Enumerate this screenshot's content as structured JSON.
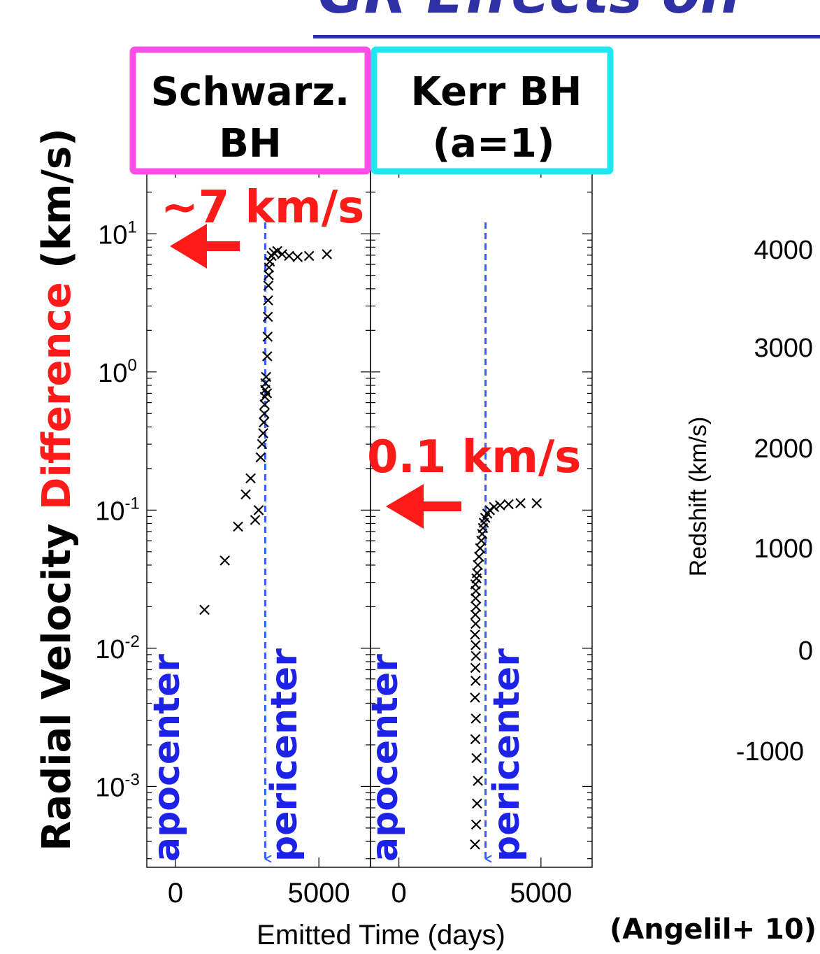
{
  "slide": {
    "title_fragment": "GR Effects on",
    "citation": "(Angelil+ 10)"
  },
  "colors": {
    "title": "#2e31a4",
    "difference": "#ff1a1a",
    "annotation_red": "#ff1a1a",
    "apsis_blue": "#1e22e6",
    "schwarzschild_box": "#ff4de8",
    "kerr_box": "#22e6ee",
    "markers": "#000000",
    "dashed_line": "#2f5fff"
  },
  "chart_data": [
    {
      "type": "scatter",
      "panel": "left",
      "label_box": [
        "Schwarz.",
        "BH"
      ],
      "annotation": "~7 km/s",
      "annotation_arrow_value": 7,
      "marker": "×",
      "ylabel_parts": [
        "Radial Velocity ",
        "Difference",
        " (km/s)"
      ],
      "xlabel": "Emitted Time (days)",
      "y_scale": "log",
      "ylim": [
        0.00026,
        30
      ],
      "xlim": [
        -1000,
        6800
      ],
      "yticks": [
        0.001,
        0.01,
        0.1,
        1,
        10
      ],
      "ytick_labels": [
        {
          "base": "10",
          "exp": "-3"
        },
        {
          "base": "10",
          "exp": "-2"
        },
        {
          "base": "10",
          "exp": "-1"
        },
        {
          "base": "10",
          "exp": "0"
        },
        {
          "base": "10",
          "exp": "1"
        }
      ],
      "xticks": [
        0,
        5000
      ],
      "xtick_labels": [
        "0",
        "5000"
      ],
      "apsis_labels": [
        "apocenter",
        "pericenter"
      ],
      "pericenter_x": 3130,
      "points": [
        {
          "x": 1010,
          "y": 0.019
        },
        {
          "x": 1720,
          "y": 0.043
        },
        {
          "x": 2180,
          "y": 0.076
        },
        {
          "x": 2450,
          "y": 0.13
        },
        {
          "x": 2620,
          "y": 0.17
        },
        {
          "x": 2780,
          "y": 0.085
        },
        {
          "x": 2900,
          "y": 0.1
        },
        {
          "x": 2970,
          "y": 0.24
        },
        {
          "x": 3020,
          "y": 0.3
        },
        {
          "x": 3060,
          "y": 0.36
        },
        {
          "x": 3080,
          "y": 0.43
        },
        {
          "x": 3100,
          "y": 0.5
        },
        {
          "x": 3110,
          "y": 0.58
        },
        {
          "x": 3120,
          "y": 0.66
        },
        {
          "x": 3130,
          "y": 0.74
        },
        {
          "x": 3140,
          "y": 0.83
        },
        {
          "x": 3160,
          "y": 0.92
        },
        {
          "x": 3190,
          "y": 0.7
        },
        {
          "x": 3200,
          "y": 1.3
        },
        {
          "x": 3210,
          "y": 1.8
        },
        {
          "x": 3220,
          "y": 2.5
        },
        {
          "x": 3230,
          "y": 3.3
        },
        {
          "x": 3240,
          "y": 4.2
        },
        {
          "x": 3250,
          "y": 5.0
        },
        {
          "x": 3260,
          "y": 5.7
        },
        {
          "x": 3290,
          "y": 6.3
        },
        {
          "x": 3350,
          "y": 6.9
        },
        {
          "x": 3430,
          "y": 7.3
        },
        {
          "x": 3550,
          "y": 7.5
        },
        {
          "x": 3720,
          "y": 7.1
        },
        {
          "x": 3960,
          "y": 6.9
        },
        {
          "x": 4260,
          "y": 6.8
        },
        {
          "x": 4660,
          "y": 6.9
        },
        {
          "x": 5280,
          "y": 7.1
        }
      ]
    },
    {
      "type": "scatter",
      "panel": "right",
      "label_box": [
        "Kerr BH",
        "(a=1)"
      ],
      "annotation": "0.1 km/s",
      "annotation_arrow_value": 0.1,
      "marker": "×",
      "y_scale": "log",
      "ylim": [
        0.00026,
        30
      ],
      "xlim": [
        -1000,
        6800
      ],
      "yticks": [
        0.001,
        0.01,
        0.1,
        1,
        10
      ],
      "xticks": [
        0,
        5000
      ],
      "xtick_labels": [
        "0",
        "5000"
      ],
      "apsis_labels": [
        "apocenter",
        "pericenter"
      ],
      "pericenter_x": 3050,
      "points": [
        {
          "x": 2680,
          "y": 0.00038
        },
        {
          "x": 2720,
          "y": 0.00053
        },
        {
          "x": 2750,
          "y": 0.00075
        },
        {
          "x": 2780,
          "y": 0.0011
        },
        {
          "x": 2730,
          "y": 0.0016
        },
        {
          "x": 2690,
          "y": 0.0022
        },
        {
          "x": 2710,
          "y": 0.0031
        },
        {
          "x": 2680,
          "y": 0.0044
        },
        {
          "x": 2700,
          "y": 0.0058
        },
        {
          "x": 2690,
          "y": 0.0072
        },
        {
          "x": 2710,
          "y": 0.0088
        },
        {
          "x": 2700,
          "y": 0.0105
        },
        {
          "x": 2680,
          "y": 0.0125
        },
        {
          "x": 2700,
          "y": 0.015
        },
        {
          "x": 2690,
          "y": 0.0175
        },
        {
          "x": 2720,
          "y": 0.02
        },
        {
          "x": 2700,
          "y": 0.023
        },
        {
          "x": 2710,
          "y": 0.026
        },
        {
          "x": 2690,
          "y": 0.029
        },
        {
          "x": 2730,
          "y": 0.032
        },
        {
          "x": 2750,
          "y": 0.035
        },
        {
          "x": 2780,
          "y": 0.04
        },
        {
          "x": 2820,
          "y": 0.046
        },
        {
          "x": 2860,
          "y": 0.053
        },
        {
          "x": 2900,
          "y": 0.06
        },
        {
          "x": 2930,
          "y": 0.067
        },
        {
          "x": 2960,
          "y": 0.074
        },
        {
          "x": 2990,
          "y": 0.081
        },
        {
          "x": 3040,
          "y": 0.088
        },
        {
          "x": 3110,
          "y": 0.094
        },
        {
          "x": 3200,
          "y": 0.1
        },
        {
          "x": 3350,
          "y": 0.105
        },
        {
          "x": 3560,
          "y": 0.108
        },
        {
          "x": 3860,
          "y": 0.11
        },
        {
          "x": 4280,
          "y": 0.112
        },
        {
          "x": 4850,
          "y": 0.112
        }
      ]
    },
    {
      "type": "line",
      "panel": "far-right (partially visible)",
      "ylabel": "Redshift (km/s)",
      "yticks": [
        -1000,
        0,
        1000,
        2000,
        3000,
        4000
      ],
      "ytick_labels": [
        "-1000",
        "0",
        "1000",
        "2000",
        "3000",
        "4000"
      ]
    }
  ]
}
